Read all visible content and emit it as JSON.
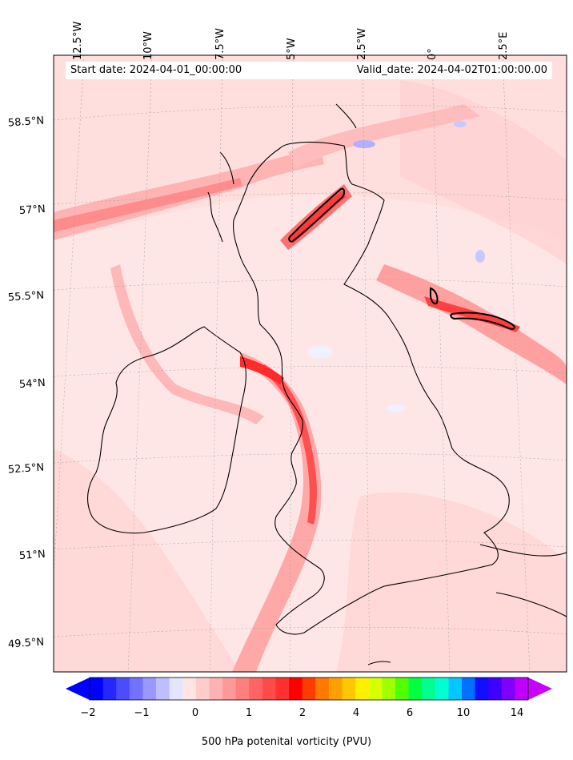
{
  "map": {
    "info": {
      "start_date": "Start date: 2024-04-01_00:00:00",
      "valid_date": "Valid_date: 2024-04-02T01:00:00.00"
    },
    "lon_labels": [
      "12.5°W",
      "10°W",
      "7.5°W",
      "5°W",
      "2.5°W",
      "0°",
      "2.5°E"
    ],
    "lat_labels": [
      "58.5°N",
      "57°N",
      "55.5°N",
      "54°N",
      "52.5°N",
      "51°N",
      "49.5°N"
    ]
  },
  "colorbar": {
    "ticks": [
      "−2",
      "−1",
      "0",
      "1",
      "2",
      "4",
      "6",
      "10",
      "14"
    ],
    "label": "500 hPa potenital vorticity (PVU)",
    "colors": [
      "#0000ff",
      "#2626ff",
      "#4c4cff",
      "#7272ff",
      "#9898ff",
      "#bebeff",
      "#e4e4ff",
      "#ffe4e4",
      "#ffcccc",
      "#ffb2b2",
      "#ff9898",
      "#ff7e7e",
      "#ff6464",
      "#ff4a4a",
      "#ff3030",
      "#ff0000",
      "#ff3c00",
      "#ff7800",
      "#ffa000",
      "#ffc800",
      "#fff000",
      "#d8ff00",
      "#a0ff00",
      "#50ff00",
      "#00ff40",
      "#00ff90",
      "#00ffd0",
      "#00c8ff",
      "#0070ff",
      "#1010ff",
      "#4000ff",
      "#8000ff",
      "#c000ff"
    ],
    "extend_low_color": "#0000ff",
    "extend_high_color": "#c800ff"
  }
}
